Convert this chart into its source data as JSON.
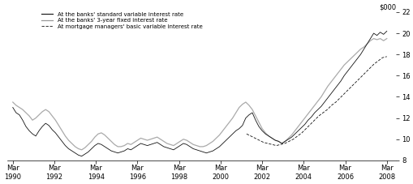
{
  "ylabel": "$000",
  "ylim": [
    8,
    22
  ],
  "yticks": [
    8,
    10,
    12,
    14,
    16,
    18,
    20,
    22
  ],
  "legend_entries": [
    "At the banks' standard variable interest rate",
    "At the banks' 3-year fixed interest rate",
    "At mortgage managers' basic variable interest rate"
  ],
  "legend_colors": [
    "#111111",
    "#999999",
    "#111111"
  ],
  "background_color": "#ffffff",
  "line_color_svr": "#111111",
  "line_color_fixed": "#aaaaaa",
  "line_color_mmvr": "#111111",
  "x_tick_years": [
    1990,
    1992,
    1994,
    1996,
    1998,
    2000,
    2002,
    2004,
    2006,
    2008
  ],
  "svr": [
    13.0,
    12.5,
    12.3,
    11.8,
    11.2,
    10.8,
    10.5,
    10.3,
    10.8,
    11.2,
    11.5,
    11.3,
    10.9,
    10.6,
    10.2,
    9.8,
    9.4,
    9.1,
    8.9,
    8.7,
    8.5,
    8.4,
    8.6,
    8.8,
    9.1,
    9.4,
    9.6,
    9.5,
    9.3,
    9.1,
    8.9,
    8.8,
    8.7,
    8.8,
    8.9,
    9.1,
    9.0,
    9.2,
    9.4,
    9.6,
    9.5,
    9.4,
    9.5,
    9.6,
    9.7,
    9.5,
    9.3,
    9.2,
    9.1,
    9.0,
    9.2,
    9.4,
    9.6,
    9.5,
    9.3,
    9.1,
    9.0,
    8.9,
    8.8,
    8.7,
    8.8,
    8.9,
    9.1,
    9.3,
    9.6,
    9.9,
    10.2,
    10.5,
    10.8,
    11.0,
    11.3,
    12.0,
    12.3,
    12.5,
    11.8,
    11.2,
    10.8,
    10.5,
    10.3,
    10.1,
    9.9,
    9.8,
    9.6,
    9.8,
    10.0,
    10.2,
    10.5,
    10.8,
    11.1,
    11.4,
    11.8,
    12.1,
    12.5,
    12.8,
    13.1,
    13.5,
    13.9,
    14.3,
    14.7,
    15.1,
    15.5,
    16.0,
    16.4,
    16.8,
    17.2,
    17.6,
    18.0,
    18.5,
    19.0,
    19.5,
    20.0,
    19.8,
    20.1,
    19.9,
    20.2
  ],
  "fixed": [
    13.5,
    13.2,
    13.0,
    12.8,
    12.5,
    12.2,
    11.8,
    12.0,
    12.3,
    12.6,
    12.8,
    12.6,
    12.2,
    11.8,
    11.3,
    10.8,
    10.3,
    9.9,
    9.6,
    9.3,
    9.1,
    9.0,
    9.2,
    9.5,
    9.8,
    10.2,
    10.5,
    10.6,
    10.4,
    10.1,
    9.8,
    9.5,
    9.3,
    9.3,
    9.4,
    9.6,
    9.5,
    9.7,
    9.9,
    10.1,
    10.0,
    9.9,
    10.0,
    10.1,
    10.2,
    10.0,
    9.8,
    9.6,
    9.5,
    9.4,
    9.6,
    9.8,
    10.0,
    9.9,
    9.7,
    9.5,
    9.4,
    9.3,
    9.3,
    9.4,
    9.6,
    9.8,
    10.1,
    10.4,
    10.8,
    11.2,
    11.6,
    12.0,
    12.5,
    13.0,
    13.3,
    13.5,
    13.2,
    12.8,
    12.2,
    11.6,
    11.0,
    10.6,
    10.3,
    10.1,
    9.9,
    9.8,
    9.6,
    9.8,
    10.1,
    10.4,
    10.8,
    11.2,
    11.6,
    12.0,
    12.4,
    12.8,
    13.2,
    13.6,
    14.0,
    14.5,
    15.0,
    15.4,
    15.8,
    16.2,
    16.6,
    17.0,
    17.3,
    17.6,
    17.9,
    18.2,
    18.5,
    18.7,
    19.0,
    19.3,
    19.5,
    19.4,
    19.5,
    19.3,
    19.5
  ],
  "mmvr_start_year": 2001.5,
  "mmvr_end_year": 2008.25,
  "mmvr": [
    10.5,
    10.3,
    10.1,
    9.9,
    9.7,
    9.6,
    9.5,
    9.4,
    9.5,
    9.6,
    9.8,
    10.0,
    10.3,
    10.6,
    11.0,
    11.4,
    11.8,
    12.2,
    12.5,
    12.8,
    13.2,
    13.5,
    13.9,
    14.3,
    14.7,
    15.1,
    15.5,
    15.9,
    16.3,
    16.7,
    17.1,
    17.4,
    17.7,
    17.8
  ]
}
